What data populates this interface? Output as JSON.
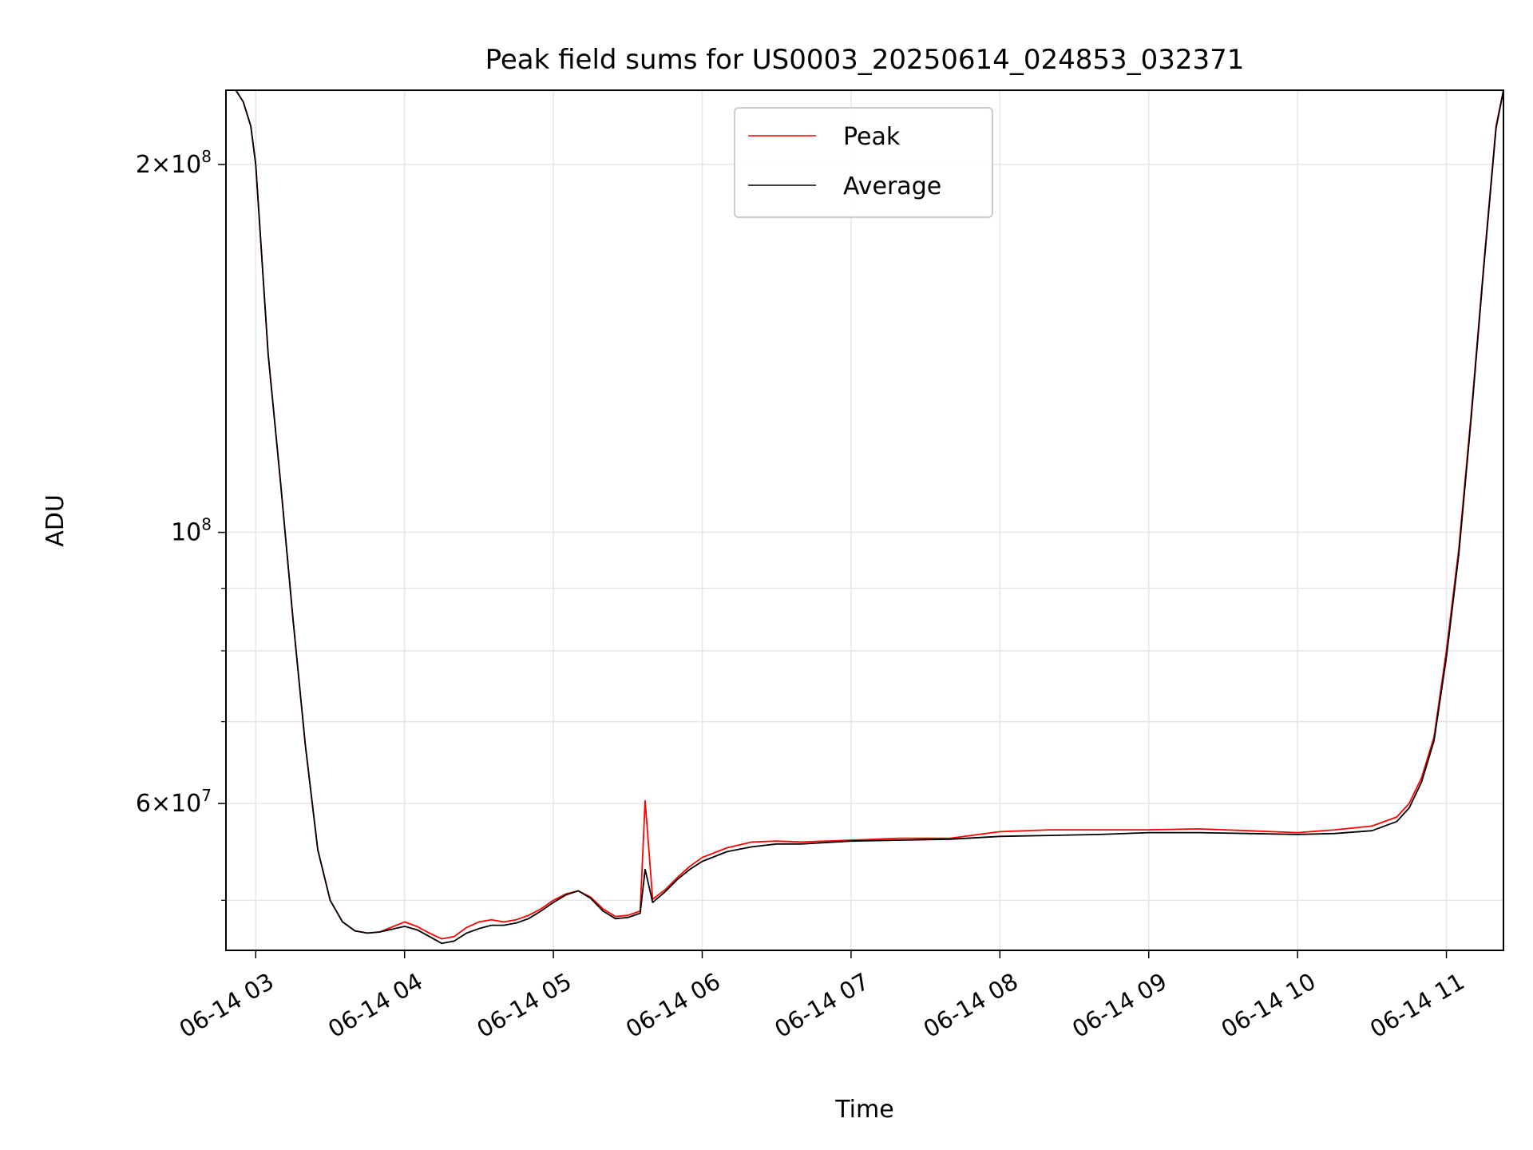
{
  "chart_data": {
    "type": "line",
    "title": "Peak field sums for US0003_20250614_024853_032371",
    "xlabel": "Time",
    "ylabel": "ADU",
    "x_unit": "date-time (2025-06-14)",
    "x_range": [
      "06-14 02:48",
      "06-14 11:23"
    ],
    "ylim": [
      45500000,
      230000000
    ],
    "y_scale": "log",
    "grid": true,
    "legend_position": "upper center",
    "x_ticks": [
      "06-14 03",
      "06-14 04",
      "06-14 05",
      "06-14 06",
      "06-14 07",
      "06-14 08",
      "06-14 09",
      "06-14 10",
      "06-14 11"
    ],
    "y_tick_labels": [
      {
        "value": 200000000,
        "mantissa": "2",
        "base": "10",
        "exp": "8"
      },
      {
        "value": 100000000,
        "mantissa": "",
        "base": "10",
        "exp": "8"
      },
      {
        "value": 60000000,
        "mantissa": "6",
        "base": "10",
        "exp": "7"
      }
    ],
    "y_minor_ticks": [
      50000000,
      70000000,
      80000000,
      90000000
    ],
    "series": [
      {
        "name": "Peak",
        "color": "#ff0000",
        "x": [
          "02:48",
          "02:52",
          "02:55",
          "02:58",
          "03:00",
          "03:05",
          "03:10",
          "03:15",
          "03:20",
          "03:25",
          "03:30",
          "03:35",
          "03:40",
          "03:45",
          "03:50",
          "04:00",
          "04:05",
          "04:10",
          "04:15",
          "04:20",
          "04:25",
          "04:30",
          "04:35",
          "04:40",
          "04:45",
          "04:50",
          "04:55",
          "05:00",
          "05:05",
          "05:10",
          "05:15",
          "05:20",
          "05:25",
          "05:30",
          "05:35",
          "05:37",
          "05:40",
          "05:45",
          "05:50",
          "05:55",
          "06:00",
          "06:10",
          "06:20",
          "06:30",
          "06:40",
          "07:00",
          "07:20",
          "07:40",
          "08:00",
          "08:20",
          "08:40",
          "09:00",
          "09:20",
          "09:40",
          "10:00",
          "10:15",
          "10:30",
          "10:40",
          "10:45",
          "10:50",
          "10:55",
          "11:00",
          "11:05",
          "11:10",
          "11:15",
          "11:20",
          "11:23"
        ],
        "y": [
          230000000,
          230000000,
          225000000,
          215000000,
          200000000,
          140000000,
          110000000,
          85000000,
          67000000,
          55000000,
          50000000,
          48000000,
          47200000,
          47000000,
          47100000,
          48000000,
          47600000,
          47000000,
          46500000,
          46700000,
          47500000,
          48000000,
          48200000,
          48000000,
          48200000,
          48600000,
          49200000,
          50000000,
          50600000,
          50900000,
          50300000,
          49200000,
          48500000,
          48600000,
          49000000,
          60300000,
          50100000,
          51000000,
          52200000,
          53300000,
          54200000,
          55200000,
          55800000,
          55900000,
          55800000,
          56000000,
          56200000,
          56200000,
          56900000,
          57100000,
          57100000,
          57100000,
          57200000,
          57000000,
          56800000,
          57100000,
          57500000,
          58500000,
          60000000,
          63000000,
          68000000,
          80000000,
          97000000,
          125000000,
          165000000,
          215000000,
          230000000
        ]
      },
      {
        "name": "Average",
        "color": "#000000",
        "x": [
          "02:48",
          "02:52",
          "02:55",
          "02:58",
          "03:00",
          "03:05",
          "03:10",
          "03:15",
          "03:20",
          "03:25",
          "03:30",
          "03:35",
          "03:40",
          "03:45",
          "03:50",
          "04:00",
          "04:05",
          "04:10",
          "04:15",
          "04:20",
          "04:25",
          "04:30",
          "04:35",
          "04:40",
          "04:45",
          "04:50",
          "04:55",
          "05:00",
          "05:05",
          "05:10",
          "05:15",
          "05:20",
          "05:25",
          "05:30",
          "05:35",
          "05:37",
          "05:40",
          "05:45",
          "05:50",
          "05:55",
          "06:00",
          "06:10",
          "06:20",
          "06:30",
          "06:40",
          "07:00",
          "07:20",
          "07:40",
          "08:00",
          "08:20",
          "08:40",
          "09:00",
          "09:20",
          "09:40",
          "10:00",
          "10:15",
          "10:30",
          "10:40",
          "10:45",
          "10:50",
          "10:55",
          "11:00",
          "11:05",
          "11:10",
          "11:15",
          "11:20",
          "11:23"
        ],
        "y": [
          230000000,
          230000000,
          225000000,
          215000000,
          200000000,
          140000000,
          110000000,
          85000000,
          67000000,
          55000000,
          50000000,
          48000000,
          47200000,
          47000000,
          47100000,
          47600000,
          47300000,
          46700000,
          46100000,
          46300000,
          47000000,
          47400000,
          47700000,
          47700000,
          47900000,
          48300000,
          49000000,
          49800000,
          50500000,
          50900000,
          50200000,
          49000000,
          48300000,
          48400000,
          48800000,
          53000000,
          49800000,
          50800000,
          52000000,
          53000000,
          53800000,
          54800000,
          55300000,
          55600000,
          55600000,
          55900000,
          56000000,
          56100000,
          56400000,
          56500000,
          56600000,
          56800000,
          56800000,
          56700000,
          56600000,
          56700000,
          57000000,
          58000000,
          59500000,
          62500000,
          67500000,
          79000000,
          96000000,
          124000000,
          164000000,
          214000000,
          230000000
        ]
      }
    ]
  }
}
